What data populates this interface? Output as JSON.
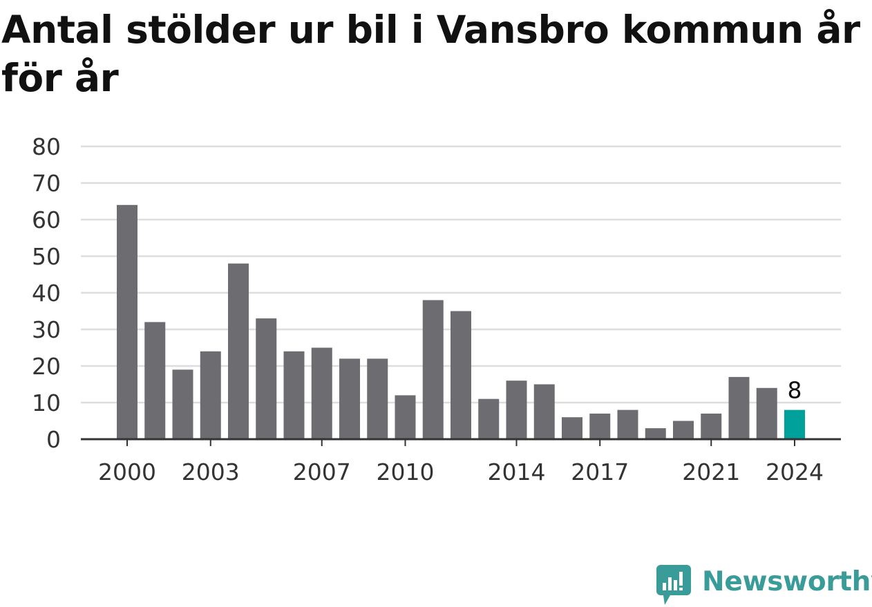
{
  "title": "Antal stölder ur bil i Vansbro kommun år för år",
  "brand": {
    "name": "Newsworthy",
    "logo_icon": "bar-chart-speech-bubble-icon",
    "color": "#3a9c99"
  },
  "colors": {
    "bar": "#6d6c71",
    "highlight": "#00a19a",
    "grid": "#dddddd",
    "axis": "#333333",
    "text": "#333333"
  },
  "chart_data": {
    "type": "bar",
    "title": "Antal stölder ur bil i Vansbro kommun år för år",
    "xlabel": "",
    "ylabel": "",
    "categories": [
      "2000",
      "2001",
      "2002",
      "2003",
      "2004",
      "2005",
      "2006",
      "2007",
      "2008",
      "2009",
      "2010",
      "2011",
      "2012",
      "2013",
      "2014",
      "2015",
      "2016",
      "2017",
      "2018",
      "2019",
      "2020",
      "2021",
      "2022",
      "2023",
      "2024"
    ],
    "values": [
      64,
      32,
      19,
      24,
      48,
      33,
      24,
      25,
      22,
      22,
      12,
      38,
      35,
      11,
      16,
      15,
      6,
      7,
      8,
      3,
      5,
      7,
      17,
      14,
      8
    ],
    "x_tick_labels": [
      "2000",
      "2003",
      "2007",
      "2010",
      "2014",
      "2017",
      "2021",
      "2024"
    ],
    "y_ticks": [
      0,
      10,
      20,
      30,
      40,
      50,
      60,
      70,
      80
    ],
    "ylim": [
      0,
      80
    ],
    "grid": true,
    "highlight": {
      "category": "2024",
      "value": 8,
      "label": "8"
    }
  }
}
